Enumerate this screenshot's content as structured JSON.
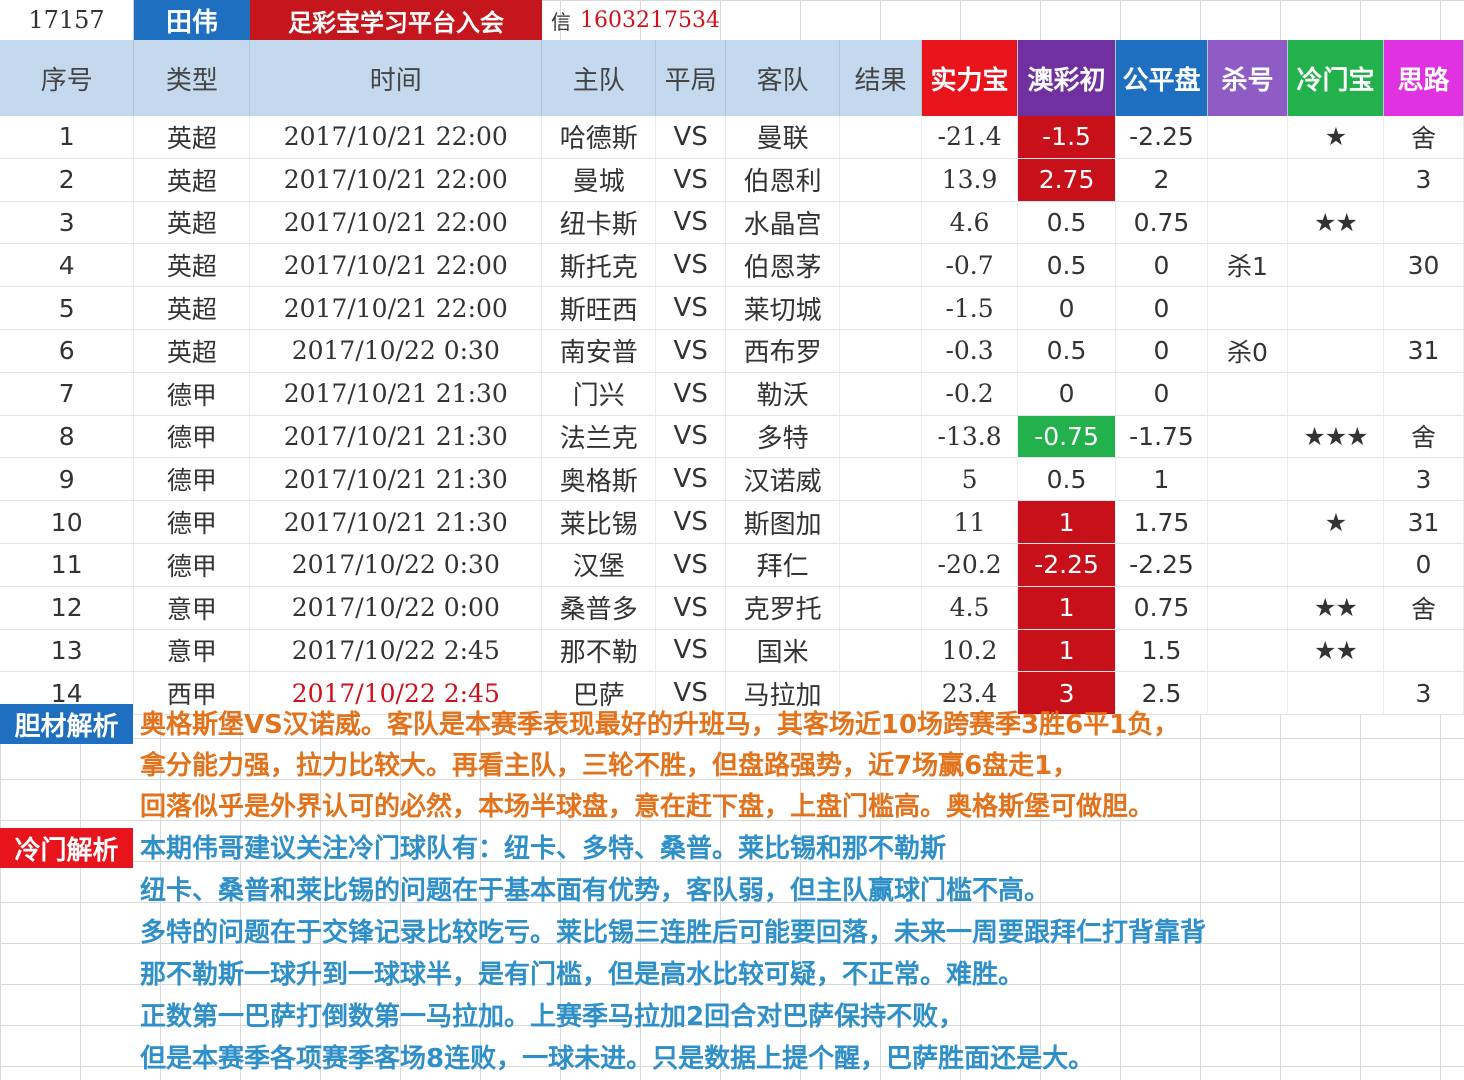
{
  "header": {
    "id": "17157",
    "name": "田伟",
    "platform": "足彩宝学习平台入会",
    "contact_label": "信",
    "contact_value": "1603217534"
  },
  "columns": [
    "序号",
    "类型",
    "时间",
    "主队",
    "平局",
    "客队",
    "结果",
    "实力宝",
    "澳彩初",
    "公平盘",
    "杀号",
    "冷门宝",
    "思路"
  ],
  "colors": {
    "blue_header": "#1f6fc0",
    "red_accent": "#c4161c",
    "green_cell": "#22b14c",
    "magenta_header": "#e032e0",
    "orange_text": "#e2731c",
    "blue_text": "#2f8fc8"
  },
  "rows": [
    {
      "no": "1",
      "league": "英超",
      "time": "2017/10/21 22:00",
      "home": "哈德斯",
      "vs": "VS",
      "away": "曼联",
      "result": "",
      "strength": "-21.4",
      "aocai": "-1.5",
      "aocai_style": "red",
      "fair": "-2.25",
      "kill": "",
      "cold": "★",
      "idea": "舍"
    },
    {
      "no": "2",
      "league": "英超",
      "time": "2017/10/21 22:00",
      "home": "曼城",
      "vs": "VS",
      "away": "伯恩利",
      "result": "",
      "strength": "13.9",
      "aocai": "2.75",
      "aocai_style": "red",
      "fair": "2",
      "kill": "",
      "cold": "",
      "idea": "3"
    },
    {
      "no": "3",
      "league": "英超",
      "time": "2017/10/21 22:00",
      "home": "纽卡斯",
      "vs": "VS",
      "away": "水晶宫",
      "result": "",
      "strength": "4.6",
      "aocai": "0.5",
      "aocai_style": "",
      "fair": "0.75",
      "kill": "",
      "cold": "★★",
      "idea": ""
    },
    {
      "no": "4",
      "league": "英超",
      "time": "2017/10/21 22:00",
      "home": "斯托克",
      "vs": "VS",
      "away": "伯恩茅",
      "result": "",
      "strength": "-0.7",
      "aocai": "0.5",
      "aocai_style": "",
      "fair": "0",
      "kill": "杀1",
      "cold": "",
      "idea": "30"
    },
    {
      "no": "5",
      "league": "英超",
      "time": "2017/10/21 22:00",
      "home": "斯旺西",
      "vs": "VS",
      "away": "莱切城",
      "result": "",
      "strength": "-1.5",
      "aocai": "0",
      "aocai_style": "",
      "fair": "0",
      "kill": "",
      "cold": "",
      "idea": ""
    },
    {
      "no": "6",
      "league": "英超",
      "time": "2017/10/22  0:30",
      "home": "南安普",
      "vs": "VS",
      "away": "西布罗",
      "result": "",
      "strength": "-0.3",
      "aocai": "0.5",
      "aocai_style": "",
      "fair": "0",
      "kill": "杀0",
      "cold": "",
      "idea": "31"
    },
    {
      "no": "7",
      "league": "德甲",
      "time": "2017/10/21 21:30",
      "home": "门兴",
      "vs": "VS",
      "away": "勒沃",
      "result": "",
      "strength": "-0.2",
      "aocai": "0",
      "aocai_style": "",
      "fair": "0",
      "kill": "",
      "cold": "",
      "idea": ""
    },
    {
      "no": "8",
      "league": "德甲",
      "time": "2017/10/21 21:30",
      "home": "法兰克",
      "vs": "VS",
      "away": "多特",
      "result": "",
      "strength": "-13.8",
      "aocai": "-0.75",
      "aocai_style": "green",
      "fair": "-1.75",
      "kill": "",
      "cold": "★★★",
      "idea": "舍"
    },
    {
      "no": "9",
      "league": "德甲",
      "time": "2017/10/21 21:30",
      "home": "奥格斯",
      "vs": "VS",
      "away": "汉诺威",
      "result": "",
      "strength": "5",
      "aocai": "0.5",
      "aocai_style": "",
      "fair": "1",
      "kill": "",
      "cold": "",
      "idea": "3"
    },
    {
      "no": "10",
      "league": "德甲",
      "time": "2017/10/21 21:30",
      "home": "莱比锡",
      "vs": "VS",
      "away": "斯图加",
      "result": "",
      "strength": "11",
      "aocai": "1",
      "aocai_style": "red",
      "fair": "1.75",
      "kill": "",
      "cold": "★",
      "idea": "31"
    },
    {
      "no": "11",
      "league": "德甲",
      "time": "2017/10/22  0:30",
      "home": "汉堡",
      "vs": "VS",
      "away": "拜仁",
      "result": "",
      "strength": "-20.2",
      "aocai": "-2.25",
      "aocai_style": "red",
      "fair": "-2.25",
      "kill": "",
      "cold": "",
      "idea": "0"
    },
    {
      "no": "12",
      "league": "意甲",
      "time": "2017/10/22  0:00",
      "home": "桑普多",
      "vs": "VS",
      "away": "克罗托",
      "result": "",
      "strength": "4.5",
      "aocai": "1",
      "aocai_style": "red",
      "fair": "0.75",
      "kill": "",
      "cold": "★★",
      "idea": "舍"
    },
    {
      "no": "13",
      "league": "意甲",
      "time": "2017/10/22  2:45",
      "home": "那不勒",
      "vs": "VS",
      "away": "国米",
      "result": "",
      "strength": "10.2",
      "aocai": "1",
      "aocai_style": "red",
      "fair": "1.5",
      "kill": "",
      "cold": "★★",
      "idea": ""
    },
    {
      "no": "14",
      "league": "西甲",
      "time": "2017/10/22  2:45",
      "time_style": "red",
      "home": "巴萨",
      "vs": "VS",
      "away": "马拉加",
      "result": "",
      "strength": "23.4",
      "aocai": "3",
      "aocai_style": "red",
      "fair": "2.5",
      "kill": "",
      "cold": "",
      "idea": "3"
    }
  ],
  "banker_analysis": {
    "label": "胆材解析",
    "lines": [
      "奥格斯堡VS汉诺威。客队是本赛季表现最好的升班马，其客场近10场跨赛季3胜6平1负，",
      "拿分能力强，拉力比较大。再看主队，三轮不胜，但盘路强势，近7场赢6盘走1，",
      "回落似乎是外界认可的必然，本场半球盘，意在赶下盘，上盘门槛高。奥格斯堡可做胆。"
    ]
  },
  "upset_analysis": {
    "label": "冷门解析",
    "lines": [
      "本期伟哥建议关注冷门球队有：纽卡、多特、桑普。莱比锡和那不勒斯",
      "纽卡、桑普和莱比锡的问题在于基本面有优势，客队弱，但主队赢球门槛不高。",
      "多特的问题在于交锋记录比较吃亏。莱比锡三连胜后可能要回落，未来一周要跟拜仁打背靠背",
      "那不勒斯一球升到一球球半，是有门槛，但是高水比较可疑，不正常。难胜。",
      "正数第一巴萨打倒数第一马拉加。上赛季马拉加2回合对巴萨保持不败，",
      "但是本赛季各项赛季客场8连败，一球未进。只是数据上提个醒，巴萨胜面还是大。"
    ]
  }
}
